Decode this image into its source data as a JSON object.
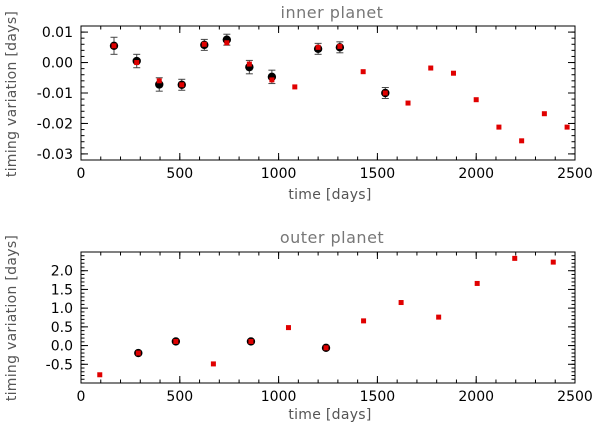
{
  "chart_data": [
    {
      "type": "scatter",
      "title": "inner planet",
      "xlabel": "time [days]",
      "ylabel": "timing variation [days]",
      "xlim": [
        0,
        2500
      ],
      "ylim": [
        -0.032,
        0.012
      ],
      "xticks": [
        0,
        500,
        1000,
        1500,
        2000,
        2500
      ],
      "xtick_labels": [
        "0",
        "500",
        "1000",
        "1500",
        "2000",
        "2500"
      ],
      "yticks": [
        0.01,
        0.0,
        -0.01,
        -0.02,
        -0.03
      ],
      "ytick_labels": [
        "0.01",
        "0.00",
        "-0.01",
        "-0.02",
        "-0.03"
      ],
      "grid": false,
      "series": [
        {
          "marker": "circle-with-errorbar",
          "color": "#000000",
          "x": [
            167,
            282,
            396,
            510,
            624,
            738,
            852,
            966,
            1200,
            1310,
            1540
          ],
          "y": [
            0.0055,
            0.0005,
            -0.0072,
            -0.0073,
            0.0058,
            0.0075,
            -0.0015,
            -0.0047,
            0.0045,
            0.005,
            -0.01
          ],
          "yerr": [
            0.0028,
            0.0022,
            0.0022,
            0.0018,
            0.0018,
            0.0018,
            0.0022,
            0.0022,
            0.0018,
            0.0018,
            0.0018
          ]
        },
        {
          "marker": "square",
          "color": "#e00000",
          "x": [
            167,
            282,
            396,
            510,
            624,
            738,
            852,
            966,
            1082,
            1200,
            1310,
            1428,
            1540,
            1655,
            1770,
            1885,
            2000,
            2115,
            2230,
            2345,
            2460
          ],
          "y": [
            0.0055,
            0.0,
            -0.006,
            -0.0073,
            0.006,
            0.0065,
            -0.0005,
            -0.0057,
            -0.008,
            0.005,
            0.0053,
            -0.003,
            -0.01,
            -0.0133,
            -0.0018,
            -0.0035,
            -0.0122,
            -0.0212,
            -0.0257,
            -0.0168,
            -0.0212
          ]
        }
      ]
    },
    {
      "type": "scatter",
      "title": "outer planet",
      "xlabel": "time [days]",
      "ylabel": "timing variation [days]",
      "xlim": [
        0,
        2500
      ],
      "ylim": [
        -1.0,
        2.5
      ],
      "xticks": [
        0,
        500,
        1000,
        1500,
        2000,
        2500
      ],
      "xtick_labels": [
        "0",
        "500",
        "1000",
        "1500",
        "2000",
        "2500"
      ],
      "yticks": [
        2.0,
        1.5,
        1.0,
        0.5,
        0.0,
        -0.5
      ],
      "ytick_labels": [
        "2.0",
        "1.5",
        "1.0",
        "0.5",
        "0.0",
        "-0.5"
      ],
      "grid": false,
      "series": [
        {
          "marker": "circle",
          "color": "#000000",
          "x": [
            290,
            480,
            860,
            1240
          ],
          "y": [
            -0.2,
            0.11,
            0.11,
            -0.06
          ]
        },
        {
          "marker": "square",
          "color": "#e00000",
          "x": [
            95,
            290,
            480,
            670,
            860,
            1050,
            1240,
            1430,
            1620,
            1810,
            2005,
            2195,
            2390
          ],
          "y": [
            -0.78,
            -0.2,
            0.11,
            -0.49,
            0.11,
            0.48,
            -0.06,
            0.66,
            1.15,
            0.76,
            1.66,
            2.33,
            2.23
          ]
        }
      ]
    }
  ],
  "colors": {
    "errorbar": "#444444"
  }
}
